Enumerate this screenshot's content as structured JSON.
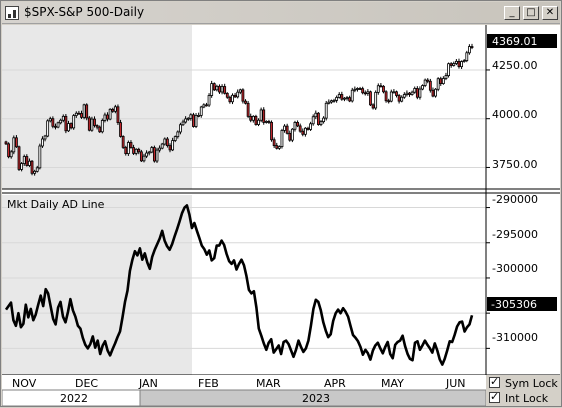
{
  "window": {
    "title": "$SPX-S&P 500-Daily",
    "minimize_label": "_",
    "maximize_label": "□",
    "close_label": "✕"
  },
  "price_pane": {
    "last_price": "4369.01",
    "y_ticks": [
      "4250.00",
      "4000.00",
      "3750.00"
    ]
  },
  "ad_pane": {
    "title": "Mkt Daily AD Line",
    "last_value": "-305306",
    "y_ticks": [
      "-290000",
      "-295000",
      "-300000",
      "-305000",
      "-310000"
    ]
  },
  "x_axis": {
    "months": [
      "NOV",
      "DEC",
      "JAN",
      "FEB",
      "MAR",
      "APR",
      "MAY",
      "JUN"
    ],
    "years": [
      "2022",
      "2023"
    ]
  },
  "controls": {
    "sym_lock_label": "Sym Lock",
    "int_lock_label": "Int Lock",
    "sym_lock_checked": true,
    "int_lock_checked": true
  },
  "chart_data": [
    {
      "type": "candlestick",
      "title": "$SPX-S&P 500-Daily",
      "ylim": [
        3660,
        4460
      ],
      "y_ticks": [
        3750,
        4000,
        4250
      ],
      "last": 4369.01,
      "up_color": "#ffffff",
      "down_color": "#c0282d",
      "closes": [
        3871,
        3805,
        3830,
        3902,
        3856,
        3740,
        3770,
        3806,
        3760,
        3782,
        3720,
        3730,
        3748,
        3860,
        3896,
        3911,
        3989,
        4000,
        3961,
        3957,
        3979,
        3992,
        4012,
        3938,
        3975,
        3953,
        4016,
        4028,
        4027,
        4007,
        4071,
        4004,
        3941,
        3998,
        3965,
        3957,
        3933,
        3991,
        4019,
        3998,
        4048,
        4038,
        4061,
        3980,
        3909,
        3853,
        3821,
        3878,
        3852,
        3822,
        3843,
        3830,
        3784,
        3808,
        3824,
        3829,
        3852,
        3783,
        3839,
        3849,
        3870,
        3896,
        3862,
        3840,
        3888,
        3908,
        3932,
        3969,
        3983,
        3999,
        4002,
        4020,
        3960,
        4017,
        4017,
        4060,
        4071,
        4070,
        4119,
        4180,
        4148,
        4166,
        4137,
        4165,
        4130,
        4110,
        4087,
        4120,
        4112,
        4136,
        4148,
        4090,
        4079,
        4012,
        3992,
        4012,
        3970,
        3992,
        4045,
        3981,
        3986,
        3981,
        3892,
        3862,
        3848,
        3857,
        3940,
        3962,
        3925,
        3890,
        3946,
        3981,
        3963,
        3936,
        3920,
        3951,
        3945,
        3974,
        4010,
        4028,
        3970,
        3985,
        4003,
        4079,
        4085,
        4092,
        4094,
        4109,
        4124,
        4100,
        4105,
        4108,
        4091,
        4146,
        4151,
        4155,
        4154,
        4133,
        4129,
        4138,
        4071,
        4055,
        4135,
        4169,
        4166,
        4138,
        4092,
        4090,
        4137,
        4138,
        4119,
        4090,
        4110,
        4124,
        4131,
        4124,
        4136,
        4155,
        4110,
        4152,
        4170,
        4198,
        4192,
        4146,
        4116,
        4151,
        4205,
        4180,
        4206,
        4221,
        4282,
        4273,
        4283,
        4294,
        4267,
        4293,
        4298,
        4338,
        4370,
        4369
      ]
    },
    {
      "type": "line",
      "title": "Mkt Daily AD Line",
      "ylim": [
        -313500,
        -288500
      ],
      "y_ticks": [
        -290000,
        -295000,
        -300000,
        -305000,
        -310000
      ],
      "last": -305306,
      "values": [
        -304500,
        -304000,
        -303500,
        -306000,
        -306800,
        -305000,
        -307000,
        -306500,
        -303800,
        -305600,
        -304400,
        -306000,
        -305200,
        -303800,
        -302500,
        -304000,
        -301600,
        -302200,
        -304000,
        -305800,
        -306600,
        -304200,
        -303400,
        -305500,
        -306300,
        -304800,
        -303000,
        -304600,
        -305500,
        -306800,
        -307200,
        -308500,
        -309500,
        -310000,
        -309400,
        -308300,
        -309900,
        -308900,
        -310800,
        -309600,
        -309000,
        -310300,
        -311000,
        -310100,
        -309300,
        -308400,
        -307600,
        -305600,
        -303400,
        -301800,
        -299000,
        -297400,
        -296200,
        -296800,
        -295800,
        -297400,
        -296500,
        -297800,
        -298700,
        -297000,
        -296000,
        -295200,
        -294400,
        -293300,
        -294700,
        -295500,
        -296000,
        -295200,
        -294100,
        -293100,
        -292000,
        -290800,
        -290000,
        -289700,
        -291000,
        -292900,
        -292200,
        -293300,
        -294300,
        -295400,
        -295900,
        -296700,
        -296100,
        -297500,
        -297200,
        -295400,
        -295400,
        -294700,
        -295300,
        -296600,
        -297600,
        -298000,
        -297500,
        -298800,
        -298000,
        -297400,
        -298200,
        -299700,
        -301700,
        -302200,
        -301900,
        -304200,
        -307200,
        -308200,
        -309300,
        -310200,
        -309200,
        -308700,
        -310600,
        -310100,
        -309600,
        -310800,
        -309100,
        -308900,
        -309400,
        -310300,
        -311200,
        -310200,
        -308900,
        -309800,
        -310500,
        -310000,
        -308900,
        -306800,
        -304400,
        -303100,
        -303400,
        -304600,
        -306300,
        -307500,
        -308400,
        -308000,
        -306100,
        -305000,
        -304500,
        -305000,
        -304300,
        -304800,
        -305500,
        -306800,
        -308100,
        -308500,
        -309000,
        -309800,
        -310900,
        -310200,
        -310700,
        -311600,
        -310300,
        -309600,
        -309200,
        -310000,
        -310700,
        -309800,
        -309100,
        -310800,
        -311400,
        -309500,
        -309100,
        -308900,
        -308200,
        -309700,
        -310800,
        -311500,
        -311700,
        -309200,
        -309000,
        -310200,
        -309600,
        -308900,
        -309500,
        -310000,
        -310600,
        -309300,
        -310300,
        -311600,
        -312300,
        -311500,
        -310300,
        -309000,
        -309100,
        -308100,
        -306900,
        -306300,
        -306200,
        -307600,
        -307000,
        -306600,
        -305306
      ]
    }
  ]
}
